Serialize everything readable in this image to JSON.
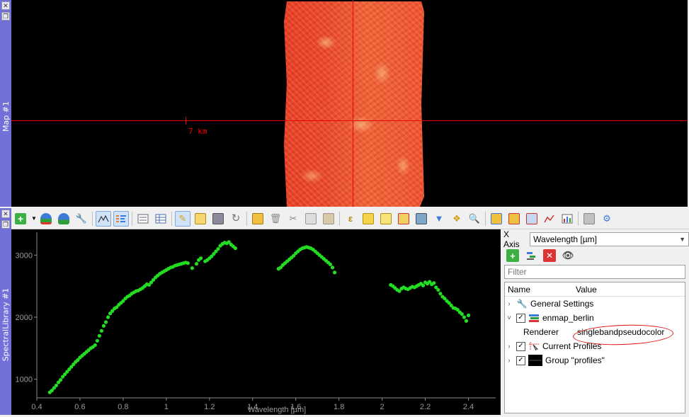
{
  "map_dock": {
    "title": "Map #1",
    "close_icon": "✕",
    "float_icon": "❐",
    "scale_label": "7  km"
  },
  "spectral_dock": {
    "title": "SpectralLibrary #1",
    "close_icon": "✕",
    "float_icon": "❐"
  },
  "toolbar": {
    "icons": [
      "add-profile-icon",
      "dropdown-arrow-icon",
      "add-database-icon",
      "database-icon",
      "settings-wrench-icon",
      "profile-curve-icon",
      "profile-list-icon",
      "form-view-icon",
      "table-view-icon",
      "edit-pencil-icon",
      "edit-table-icon",
      "save-icon",
      "reload-icon",
      "add-feature-icon",
      "delete-icon",
      "cut-icon",
      "copy-icon",
      "paste-icon",
      "expression-icon",
      "field-calc-icon",
      "select-all-icon",
      "deselect-icon",
      "move-top-icon",
      "filter-icon",
      "select-by-icon",
      "zoom-icon",
      "add-attribute-icon",
      "remove-attribute-icon",
      "attribute-editor-icon",
      "spectral-processing-icon",
      "statistics-icon",
      "export-icon",
      "inspect-icon"
    ]
  },
  "panel": {
    "xaxis_label": "X Axis",
    "xaxis_value": "Wavelength [µm]",
    "filter_placeholder": "Filter",
    "col_name": "Name",
    "col_value": "Value",
    "rows": {
      "general": "General Settings",
      "layer": "enmap_berlin",
      "renderer_key": "Renderer",
      "renderer_value": "singlebandpseudocolor",
      "current": "Current Profiles",
      "group": "Group \"profiles\""
    }
  },
  "chart_data": {
    "type": "scatter",
    "xlabel": "Wavelength [µm]",
    "ylabel": "",
    "xlim": [
      0.4,
      2.5
    ],
    "ylim": [
      700,
      3300
    ],
    "xticks": [
      "0.4",
      "0.6",
      "0.8",
      "1",
      "1.2",
      "1.4",
      "1.6",
      "1.8",
      "2",
      "2.2",
      "2.4"
    ],
    "yticks": [
      "1000",
      "2000",
      "3000"
    ],
    "marker_color": "#22dd22",
    "segments": [
      {
        "x": [
          0.46,
          0.47,
          0.48,
          0.49,
          0.5,
          0.51,
          0.52,
          0.53,
          0.54,
          0.55,
          0.56,
          0.57,
          0.58,
          0.59,
          0.6,
          0.61,
          0.62,
          0.63,
          0.64,
          0.65,
          0.66,
          0.67,
          0.68,
          0.69,
          0.7,
          0.71,
          0.72,
          0.73,
          0.74,
          0.75,
          0.76,
          0.77,
          0.78,
          0.79,
          0.8,
          0.81,
          0.82,
          0.83,
          0.84,
          0.85,
          0.86,
          0.87,
          0.88,
          0.89,
          0.9,
          0.91,
          0.92,
          0.93,
          0.94,
          0.95,
          0.96,
          0.97,
          0.98,
          0.99,
          1.0,
          1.01,
          1.02,
          1.03,
          1.04,
          1.05,
          1.06,
          1.07,
          1.08,
          1.09,
          1.1
        ],
        "y": [
          790,
          820,
          860,
          900,
          950,
          990,
          1040,
          1080,
          1120,
          1160,
          1200,
          1240,
          1280,
          1310,
          1350,
          1380,
          1410,
          1440,
          1470,
          1500,
          1520,
          1550,
          1620,
          1700,
          1780,
          1860,
          1920,
          2000,
          2060,
          2100,
          2140,
          2160,
          2200,
          2230,
          2260,
          2300,
          2330,
          2350,
          2380,
          2400,
          2420,
          2430,
          2450,
          2470,
          2500,
          2530,
          2520,
          2560,
          2600,
          2640,
          2670,
          2700,
          2720,
          2740,
          2760,
          2780,
          2800,
          2810,
          2830,
          2840,
          2850,
          2860,
          2870,
          2880,
          2870
        ]
      },
      {
        "x": [
          1.12,
          1.14,
          1.15,
          1.16,
          1.18,
          1.19,
          1.2,
          1.21,
          1.22,
          1.23,
          1.24,
          1.25,
          1.26,
          1.27,
          1.28,
          1.29,
          1.3,
          1.31,
          1.32
        ],
        "y": [
          2790,
          2860,
          2920,
          2950,
          2900,
          2920,
          2950,
          2980,
          3020,
          3060,
          3100,
          3150,
          3180,
          3200,
          3190,
          3210,
          3170,
          3140,
          3110
        ]
      },
      {
        "x": [
          1.52,
          1.53,
          1.54,
          1.55,
          1.56,
          1.57,
          1.58,
          1.59,
          1.6,
          1.61,
          1.62,
          1.63,
          1.64,
          1.65,
          1.66,
          1.67,
          1.68,
          1.69,
          1.7,
          1.71,
          1.72,
          1.73,
          1.74,
          1.75,
          1.76,
          1.77,
          1.78
        ],
        "y": [
          2780,
          2800,
          2840,
          2870,
          2900,
          2930,
          2960,
          2990,
          3030,
          3060,
          3090,
          3110,
          3120,
          3130,
          3120,
          3110,
          3090,
          3060,
          3030,
          3000,
          2970,
          2940,
          2910,
          2880,
          2850,
          2800,
          2720
        ]
      },
      {
        "x": [
          2.04,
          2.05,
          2.06,
          2.07,
          2.08,
          2.09,
          2.1,
          2.11,
          2.12,
          2.13,
          2.14,
          2.15,
          2.16,
          2.17,
          2.18,
          2.19,
          2.2,
          2.21,
          2.22,
          2.23,
          2.24,
          2.25,
          2.26,
          2.27,
          2.28,
          2.29,
          2.3,
          2.31,
          2.32,
          2.33,
          2.34,
          2.35,
          2.36,
          2.37,
          2.38,
          2.39,
          2.4
        ],
        "y": [
          2520,
          2500,
          2470,
          2440,
          2420,
          2460,
          2480,
          2460,
          2450,
          2470,
          2490,
          2480,
          2500,
          2520,
          2540,
          2510,
          2560,
          2540,
          2570,
          2530,
          2550,
          2480,
          2440,
          2380,
          2330,
          2300,
          2260,
          2230,
          2190,
          2150,
          2140,
          2120,
          2080,
          2050,
          2000,
          1940,
          2030
        ]
      }
    ]
  }
}
